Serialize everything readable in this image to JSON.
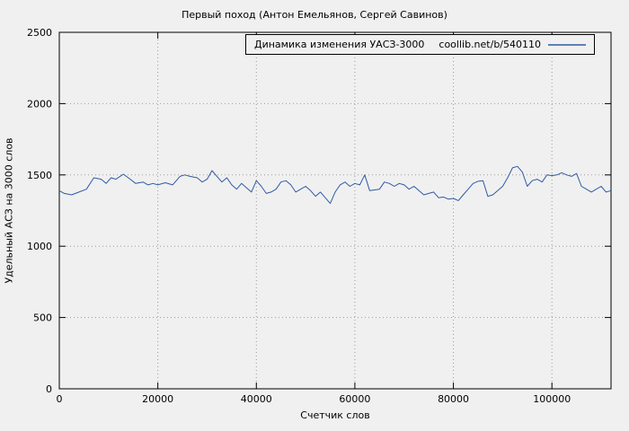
{
  "page": {
    "background": "#f0f0f0"
  },
  "chart_data": {
    "type": "line",
    "title": "Первый поход (Антон Емельянов, Сергей Савинов)",
    "xlabel": "Счетчик слов",
    "ylabel": "Удельный АСЗ на 3000 слов",
    "xlim": [
      0,
      112000
    ],
    "ylim": [
      0,
      2500
    ],
    "xticks": [
      0,
      20000,
      40000,
      60000,
      80000,
      100000
    ],
    "yticks": [
      0,
      500,
      1000,
      1500,
      2000,
      2500
    ],
    "grid": "dotted",
    "grid_color": "#9a9a9a",
    "border_color": "#000000",
    "legend": {
      "position": "top-right",
      "label": "Динамика изменения УАСЗ-3000",
      "url": "coollib.net/b/540110"
    },
    "series": [
      {
        "name": "Динамика изменения УАСЗ-3000",
        "color": "#2f5aa5",
        "points": [
          [
            0,
            1390
          ],
          [
            1000,
            1370
          ],
          [
            2500,
            1360
          ],
          [
            4000,
            1380
          ],
          [
            5500,
            1400
          ],
          [
            7000,
            1480
          ],
          [
            8500,
            1470
          ],
          [
            9500,
            1440
          ],
          [
            10500,
            1480
          ],
          [
            11500,
            1470
          ],
          [
            13000,
            1505
          ],
          [
            14000,
            1480
          ],
          [
            15500,
            1440
          ],
          [
            17000,
            1450
          ],
          [
            18000,
            1430
          ],
          [
            19000,
            1440
          ],
          [
            20000,
            1430
          ],
          [
            21500,
            1445
          ],
          [
            23000,
            1430
          ],
          [
            24500,
            1490
          ],
          [
            25500,
            1500
          ],
          [
            26500,
            1490
          ],
          [
            28000,
            1480
          ],
          [
            29000,
            1450
          ],
          [
            30000,
            1470
          ],
          [
            31000,
            1530
          ],
          [
            32000,
            1490
          ],
          [
            33000,
            1450
          ],
          [
            34000,
            1480
          ],
          [
            35000,
            1430
          ],
          [
            36000,
            1400
          ],
          [
            37000,
            1440
          ],
          [
            38000,
            1410
          ],
          [
            39000,
            1380
          ],
          [
            40000,
            1460
          ],
          [
            41000,
            1420
          ],
          [
            42000,
            1370
          ],
          [
            43000,
            1380
          ],
          [
            44000,
            1400
          ],
          [
            45000,
            1450
          ],
          [
            46000,
            1460
          ],
          [
            47000,
            1430
          ],
          [
            48000,
            1380
          ],
          [
            49000,
            1400
          ],
          [
            50000,
            1420
          ],
          [
            51000,
            1390
          ],
          [
            52000,
            1350
          ],
          [
            53000,
            1380
          ],
          [
            54000,
            1340
          ],
          [
            55000,
            1300
          ],
          [
            56000,
            1380
          ],
          [
            57000,
            1430
          ],
          [
            58000,
            1450
          ],
          [
            59000,
            1420
          ],
          [
            60000,
            1440
          ],
          [
            61000,
            1430
          ],
          [
            62000,
            1500
          ],
          [
            63000,
            1390
          ],
          [
            64000,
            1395
          ],
          [
            65000,
            1400
          ],
          [
            66000,
            1450
          ],
          [
            67000,
            1440
          ],
          [
            68000,
            1420
          ],
          [
            69000,
            1440
          ],
          [
            70000,
            1430
          ],
          [
            71000,
            1400
          ],
          [
            72000,
            1420
          ],
          [
            73000,
            1390
          ],
          [
            74000,
            1360
          ],
          [
            75000,
            1370
          ],
          [
            76000,
            1380
          ],
          [
            77000,
            1340
          ],
          [
            78000,
            1345
          ],
          [
            79000,
            1330
          ],
          [
            80000,
            1335
          ],
          [
            81000,
            1320
          ],
          [
            82000,
            1360
          ],
          [
            83000,
            1400
          ],
          [
            84000,
            1440
          ],
          [
            85000,
            1455
          ],
          [
            86000,
            1460
          ],
          [
            87000,
            1350
          ],
          [
            88000,
            1360
          ],
          [
            89000,
            1390
          ],
          [
            90000,
            1420
          ],
          [
            91000,
            1480
          ],
          [
            92000,
            1550
          ],
          [
            93000,
            1560
          ],
          [
            94000,
            1520
          ],
          [
            95000,
            1420
          ],
          [
            96000,
            1460
          ],
          [
            97000,
            1470
          ],
          [
            98000,
            1450
          ],
          [
            99000,
            1500
          ],
          [
            100000,
            1495
          ],
          [
            101000,
            1500
          ],
          [
            102000,
            1515
          ],
          [
            103000,
            1500
          ],
          [
            104000,
            1490
          ],
          [
            105000,
            1510
          ],
          [
            106000,
            1420
          ],
          [
            107000,
            1400
          ],
          [
            108000,
            1380
          ],
          [
            109000,
            1400
          ],
          [
            110000,
            1420
          ],
          [
            111000,
            1380
          ],
          [
            112000,
            1390
          ]
        ]
      }
    ]
  }
}
